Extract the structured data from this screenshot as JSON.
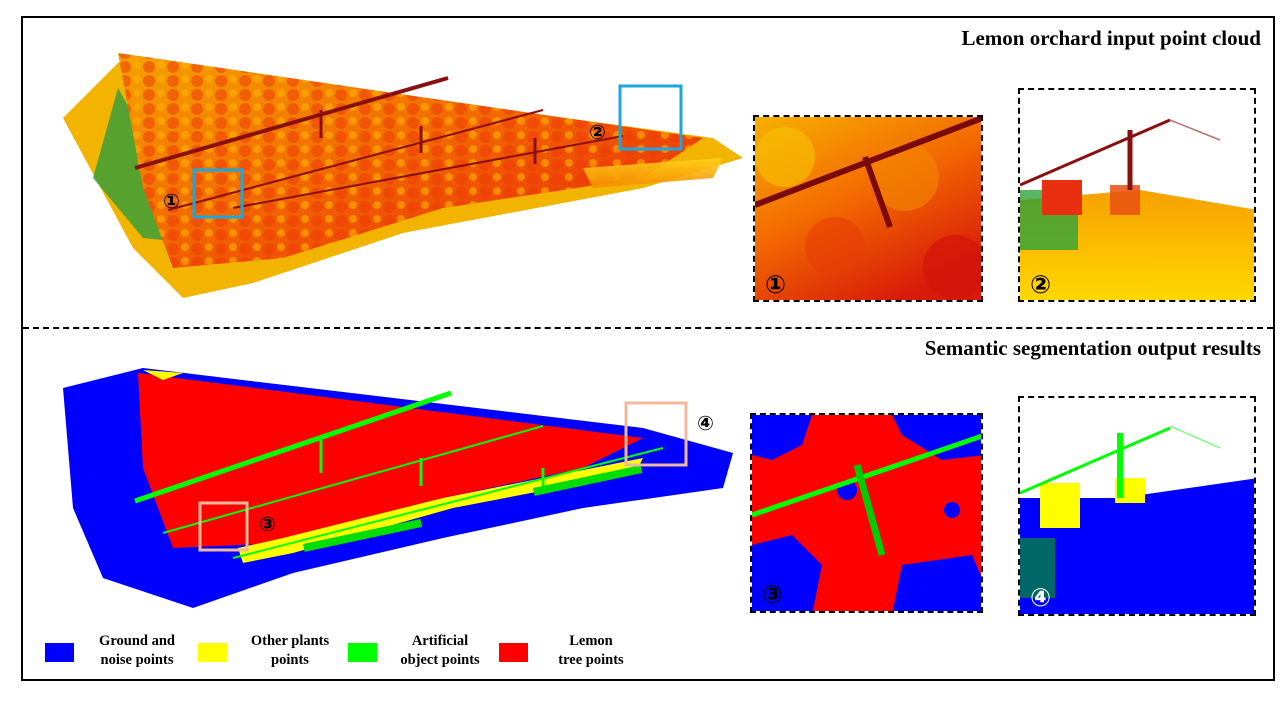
{
  "top_panel": {
    "title": "Lemon orchard input point cloud"
  },
  "bottom_panel": {
    "title": "Semantic segmentation output results"
  },
  "markers": [
    "①",
    "②",
    "③",
    "④"
  ],
  "box_colors": {
    "top": "#1ea6db",
    "bottom": "#f0b89a"
  },
  "legend": [
    {
      "line1": "Ground and",
      "line2": "noise points",
      "color": "#0000ff"
    },
    {
      "line1": "Other plants",
      "line2": "points",
      "color": "#ffff00"
    },
    {
      "line1": "Artificial",
      "line2": "object points",
      "color": "#00ff00"
    },
    {
      "line1": "Lemon",
      "line2": "tree points",
      "color": "#ff0000"
    }
  ]
}
